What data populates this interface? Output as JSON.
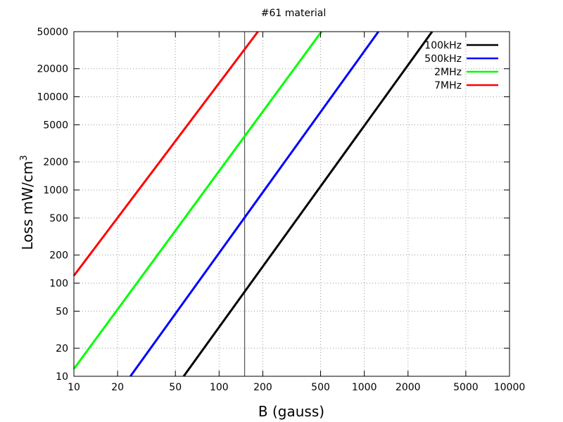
{
  "chart_data": {
    "type": "line",
    "title": "#61 material",
    "xlabel": "B (gauss)",
    "ylabel_main": "Loss mW/cm",
    "ylabel_sup": "3",
    "x_scale": "log",
    "y_scale": "log",
    "xlim": [
      10,
      10000
    ],
    "ylim": [
      10,
      50000
    ],
    "x_ticks": [
      10,
      20,
      50,
      100,
      200,
      500,
      1000,
      2000,
      5000,
      10000
    ],
    "y_ticks": [
      10,
      20,
      50,
      100,
      200,
      500,
      1000,
      2000,
      5000,
      10000,
      20000,
      50000
    ],
    "grid": true,
    "legend_position": "top-right",
    "vertical_marker_x": 150,
    "series": [
      {
        "name": "100kHz",
        "color": "#000000",
        "x": [
          57,
          2930
        ],
        "y": [
          10,
          50000
        ]
      },
      {
        "name": "500kHz",
        "color": "#0000ff",
        "x": [
          24.5,
          1250
        ],
        "y": [
          10,
          50000
        ]
      },
      {
        "name": "2MHz",
        "color": "#00ff00",
        "x": [
          10,
          507
        ],
        "y": [
          12,
          50000
        ]
      },
      {
        "name": "7MHz",
        "color": "#ff0000",
        "x": [
          10,
          185
        ],
        "y": [
          120,
          50000
        ]
      }
    ]
  }
}
